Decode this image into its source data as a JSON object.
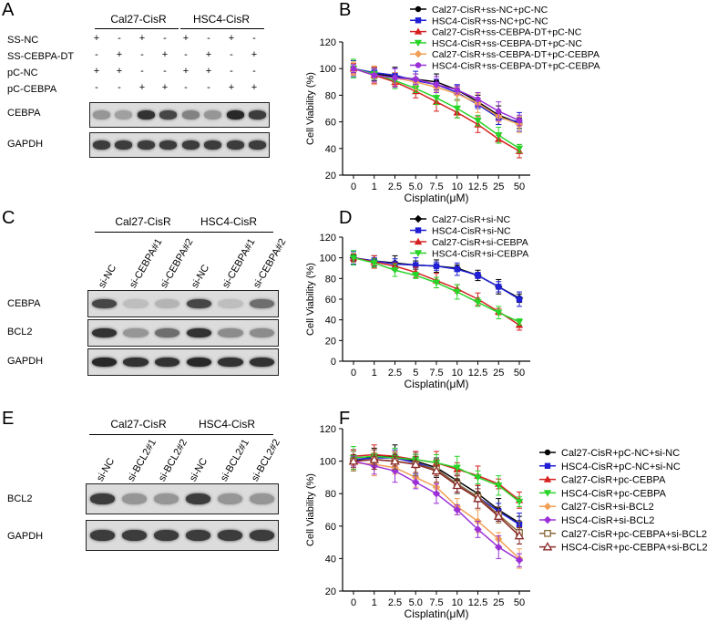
{
  "panels": {
    "A": {
      "letter": "A",
      "groups": [
        "Cal27-CisR",
        "HSC4-CisR"
      ],
      "conditions": [
        {
          "label": "SS-NC",
          "signs": [
            "+",
            "-",
            "+",
            "-",
            "+",
            "-",
            "+",
            "-"
          ]
        },
        {
          "label": "SS-CEBPA-DT",
          "signs": [
            "-",
            "+",
            "-",
            "+",
            "-",
            "+",
            "-",
            "+"
          ]
        },
        {
          "label": "pC-NC",
          "signs": [
            "+",
            "+",
            "-",
            "-",
            "+",
            "+",
            "-",
            "-"
          ]
        },
        {
          "label": "pC-CEBPA",
          "signs": [
            "-",
            "-",
            "+",
            "+",
            "-",
            "-",
            "+",
            "+"
          ]
        }
      ],
      "blots": [
        {
          "label": "CEBPA",
          "intensity": [
            0.35,
            0.3,
            0.85,
            0.75,
            0.45,
            0.35,
            0.9,
            0.8
          ]
        },
        {
          "label": "GAPDH",
          "intensity": [
            0.8,
            0.8,
            0.8,
            0.8,
            0.8,
            0.8,
            0.8,
            0.8
          ]
        }
      ]
    },
    "C": {
      "letter": "C",
      "groups": [
        "Cal27-CisR",
        "HSC4-CisR"
      ],
      "lanes": [
        "si-NC",
        "si-CEBPA#1",
        "si-CEBPA#2",
        "si-NC",
        "si-CEBPA#1",
        "si-CEBPA#2"
      ],
      "blots": [
        {
          "label": "CEBPA",
          "intensity": [
            0.75,
            0.15,
            0.2,
            0.75,
            0.15,
            0.55
          ]
        },
        {
          "label": "BCL2",
          "intensity": [
            0.85,
            0.35,
            0.55,
            0.85,
            0.4,
            0.4
          ]
        },
        {
          "label": "GAPDH",
          "intensity": [
            0.9,
            0.85,
            0.85,
            0.9,
            0.85,
            0.85
          ]
        }
      ]
    },
    "E": {
      "letter": "E",
      "groups": [
        "Cal27-CisR",
        "HSC4-CisR"
      ],
      "lanes": [
        "si-NC",
        "si-BCL2#1",
        "si-BCL2#2",
        "si-NC",
        "si-BCL2#1",
        "si-BCL2#2"
      ],
      "blots": [
        {
          "label": "BCL2",
          "intensity": [
            0.8,
            0.35,
            0.35,
            0.8,
            0.35,
            0.35
          ]
        },
        {
          "label": "GAPDH",
          "intensity": [
            0.8,
            0.8,
            0.8,
            0.8,
            0.8,
            0.8
          ]
        }
      ]
    },
    "B": {
      "letter": "B"
    },
    "D": {
      "letter": "D"
    },
    "F": {
      "letter": "F"
    }
  },
  "chart_data": [
    {
      "panel": "B",
      "type": "line",
      "x": [
        "0",
        "1",
        "2.5",
        "5.0",
        "7.5",
        "10",
        "12.5",
        "25",
        "50"
      ],
      "xlabel": "Cisplatin(μM)",
      "ylabel": "Cell Viability (%)",
      "ylim": [
        20,
        120
      ],
      "yticks": [
        20,
        40,
        60,
        80,
        100,
        120
      ],
      "legend": "top-right",
      "series": [
        {
          "name": "Cal27-CisR+ss-NC+pC-NC",
          "color": "#000000",
          "marker": "circle",
          "values": [
            100,
            96,
            94,
            92,
            90,
            84,
            75,
            65,
            59
          ]
        },
        {
          "name": "HSC4-CisR+ss-NC+pC-NC",
          "color": "#1f1fd6",
          "marker": "square",
          "values": [
            100,
            97,
            95,
            91,
            88,
            82,
            73,
            63,
            60
          ]
        },
        {
          "name": "Cal27-CisR+ss-CEBPA-DT+pC-NC",
          "color": "#d62020",
          "marker": "triangle",
          "values": [
            100,
            95,
            90,
            83,
            75,
            67,
            58,
            47,
            38
          ]
        },
        {
          "name": "HSC4-CisR+ss-CEBPA-DT+pC-NC",
          "color": "#28d428",
          "marker": "triangle-down",
          "values": [
            100,
            96,
            91,
            85,
            78,
            70,
            61,
            50,
            40
          ]
        },
        {
          "name": "Cal27-CisR+ss-CEBPA-DT+pC-CEBPA",
          "color": "#f2a055",
          "marker": "diamond",
          "values": [
            100,
            95,
            93,
            90,
            86,
            81,
            74,
            64,
            58
          ]
        },
        {
          "name": "HSC4-CisR+ss-CEBPA-DT+pC-CEBPA",
          "color": "#9b30d9",
          "marker": "circle",
          "values": [
            100,
            95,
            93,
            92,
            88,
            84,
            77,
            68,
            61
          ]
        }
      ]
    },
    {
      "panel": "D",
      "type": "line",
      "x": [
        "0",
        "1",
        "2.5",
        "5",
        "7.5",
        "10",
        "12.5",
        "25",
        "50"
      ],
      "xlabel": "Cisplatin(μM)",
      "ylabel": "Cell Viability (%)",
      "ylim": [
        0,
        120
      ],
      "yticks": [
        0,
        20,
        40,
        60,
        80,
        100,
        120
      ],
      "legend": "top-right",
      "series": [
        {
          "name": "Cal27-CisR+si-NC",
          "color": "#000000",
          "marker": "diamond",
          "values": [
            100,
            97,
            95,
            93,
            92,
            90,
            83,
            72,
            61
          ]
        },
        {
          "name": "HSC4-CisR+si-NC",
          "color": "#1f1fd6",
          "marker": "square",
          "values": [
            100,
            97,
            94,
            93,
            92,
            89,
            83,
            72,
            60
          ]
        },
        {
          "name": "Cal27-CisR+si-CEBPA",
          "color": "#d62020",
          "marker": "triangle",
          "values": [
            100,
            96,
            92,
            86,
            78,
            70,
            60,
            48,
            35
          ]
        },
        {
          "name": "HSC4-CisR+si-CEBPA",
          "color": "#28d428",
          "marker": "triangle-down",
          "values": [
            100,
            95,
            88,
            83,
            76,
            67,
            57,
            47,
            38
          ]
        }
      ]
    },
    {
      "panel": "F",
      "type": "line",
      "x": [
        "0",
        "1",
        "2.5",
        "5.0",
        "7.5",
        "10",
        "12.5",
        "25",
        "50"
      ],
      "xlabel": "Cisplatin(μM)",
      "ylabel": "Cell Viability (%)",
      "ylim": [
        20,
        120
      ],
      "yticks": [
        20,
        40,
        60,
        80,
        100,
        120
      ],
      "legend": "right",
      "series": [
        {
          "name": "Cal27-CisR+pC-NC+si-NC",
          "color": "#000000",
          "marker": "circle",
          "values": [
            100,
            103,
            103,
            100,
            96,
            88,
            80,
            70,
            62
          ]
        },
        {
          "name": "HSC4-CisR+pC-NC+si-NC",
          "color": "#1f1fd6",
          "marker": "square",
          "values": [
            101,
            102,
            102,
            99,
            95,
            86,
            78,
            69,
            61
          ]
        },
        {
          "name": "Cal27-CisR+pc-CEBPA",
          "color": "#d62020",
          "marker": "triangle",
          "values": [
            103,
            104,
            103,
            101,
            99,
            95,
            91,
            86,
            76
          ]
        },
        {
          "name": "HSC4-CisR+pc-CEBPA",
          "color": "#28d428",
          "marker": "triangle-down",
          "values": [
            102,
            103,
            102,
            101,
            99,
            96,
            90,
            85,
            75
          ]
        },
        {
          "name": "Cal27-CisR+si-BCL2",
          "color": "#f2a055",
          "marker": "diamond",
          "values": [
            99,
            98,
            96,
            90,
            84,
            72,
            63,
            52,
            40
          ]
        },
        {
          "name": "HSC4-CisR+si-BCL2",
          "color": "#9b30d9",
          "marker": "diamond",
          "values": [
            100,
            97,
            94,
            87,
            80,
            70,
            58,
            47,
            39
          ]
        },
        {
          "name": "Cal27-CisR+pc-CEBPA+si-BCL2",
          "color": "#8b6a3a",
          "marker": "square-open",
          "values": [
            100,
            101,
            100,
            98,
            95,
            86,
            78,
            67,
            56
          ]
        },
        {
          "name": "HSC4-CisR+pc-CEBPA+si-BCL2",
          "color": "#8b2a2a",
          "marker": "triangle-open",
          "values": [
            100,
            101,
            100,
            98,
            94,
            85,
            77,
            66,
            54
          ]
        }
      ]
    }
  ]
}
